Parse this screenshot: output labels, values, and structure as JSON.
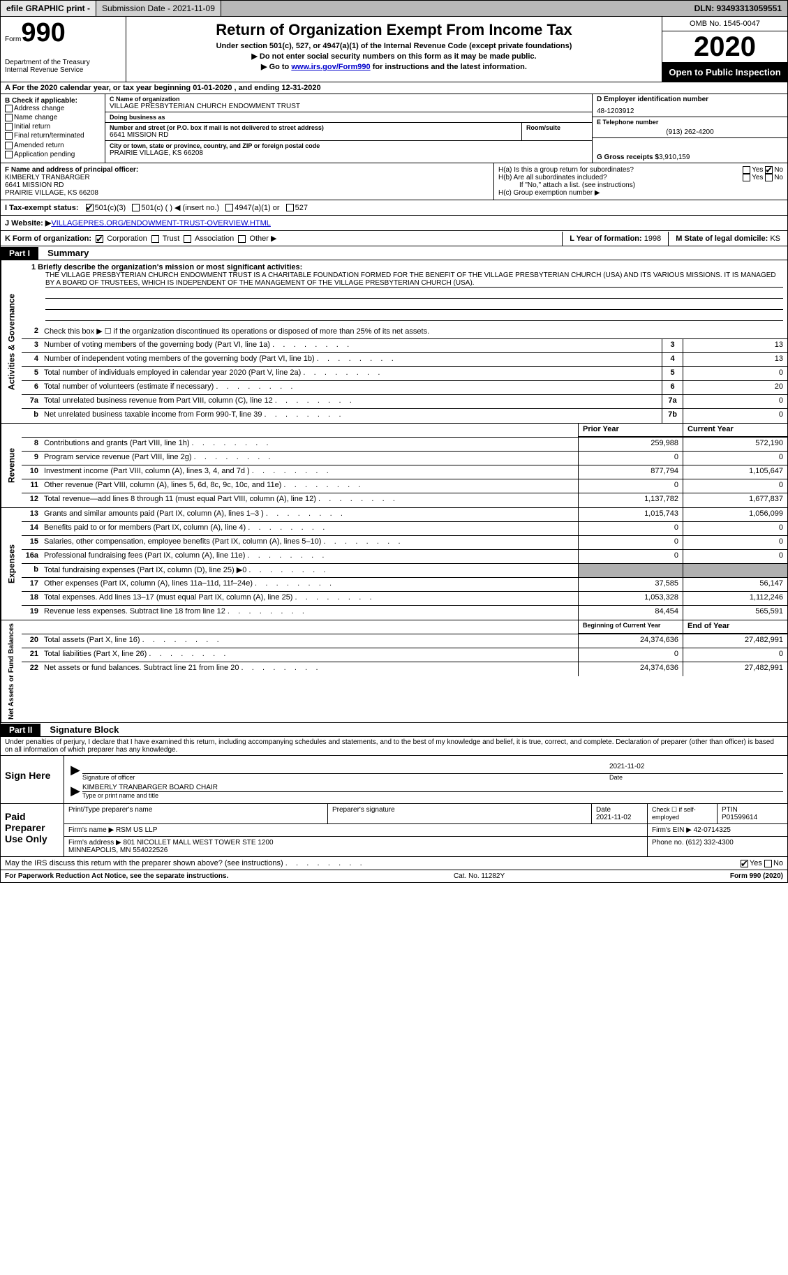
{
  "topbar": {
    "efile": "efile GRAPHIC print -",
    "submission": "Submission Date - 2021-11-09",
    "dln": "DLN: 93493313059551"
  },
  "header": {
    "form_label": "Form",
    "form_num": "990",
    "dept": "Department of the Treasury\nInternal Revenue Service",
    "title": "Return of Organization Exempt From Income Tax",
    "sub1": "Under section 501(c), 527, or 4947(a)(1) of the Internal Revenue Code (except private foundations)",
    "sub2": "▶ Do not enter social security numbers on this form as it may be made public.",
    "sub3_pre": "▶ Go to ",
    "sub3_link": "www.irs.gov/Form990",
    "sub3_post": " for instructions and the latest information.",
    "omb": "OMB No. 1545-0047",
    "year": "2020",
    "inspect": "Open to Public Inspection"
  },
  "rowA": "A For the 2020 calendar year, or tax year beginning 01-01-2020    , and ending 12-31-2020",
  "colB": {
    "title": "B Check if applicable:",
    "items": [
      "Address change",
      "Name change",
      "Initial return",
      "Final return/terminated",
      "Amended return",
      "Application pending"
    ]
  },
  "orgC": {
    "name_lbl": "C Name of organization",
    "name": "VILLAGE PRESBYTERIAN CHURCH ENDOWMENT TRUST",
    "dba_lbl": "Doing business as",
    "dba": "",
    "addr_lbl": "Number and street (or P.O. box if mail is not delivered to street address)",
    "addr": "6641 MISSION RD",
    "room_lbl": "Room/suite",
    "city_lbl": "City or town, state or province, country, and ZIP or foreign postal code",
    "city": "PRAIRIE VILLAGE, KS  66208"
  },
  "colD": {
    "ein_lbl": "D Employer identification number",
    "ein": "48-1203912",
    "tel_lbl": "E Telephone number",
    "tel": "(913) 262-4200",
    "gross_lbl": "G Gross receipts $ ",
    "gross": "3,910,159"
  },
  "rowF": {
    "lbl": "F Name and address of principal officer:",
    "name": "KIMBERLY TRANBARGER",
    "addr1": "6641 MISSION RD",
    "addr2": "PRAIRIE VILLAGE, KS  66208"
  },
  "rowH": {
    "ha": "H(a)  Is this a group return for subordinates?",
    "hb": "H(b)  Are all subordinates included?",
    "hb_note": "If \"No,\" attach a list. (see instructions)",
    "hc": "H(c)  Group exemption number ▶"
  },
  "rowI": {
    "lbl": "I    Tax-exempt status:",
    "o1": "501(c)(3)",
    "o2": "501(c) (  ) ◀ (insert no.)",
    "o3": "4947(a)(1) or",
    "o4": "527"
  },
  "rowJ": {
    "lbl": "J    Website: ▶ ",
    "val": "VILLAGEPRES.ORG/ENDOWMENT-TRUST-OVERVIEW.HTML"
  },
  "rowK": {
    "lbl": "K Form of organization:",
    "o1": "Corporation",
    "o2": "Trust",
    "o3": "Association",
    "o4": "Other ▶",
    "l_lbl": "L Year of formation: ",
    "l_val": "1998",
    "m_lbl": "M State of legal domicile: ",
    "m_val": "KS"
  },
  "part1": {
    "hdr": "Part I",
    "title": "Summary"
  },
  "mission": {
    "q": "1   Briefly describe the organization's mission or most significant activities:",
    "text": "THE VILLAGE PRESBYTERIAN CHURCH ENDOWMENT TRUST IS A CHARITABLE FOUNDATION FORMED FOR THE BENEFIT OF THE VILLAGE PRESBYTERIAN CHURCH (USA) AND ITS VARIOUS MISSIONS. IT IS MANAGED BY A BOARD OF TRUSTEES, WHICH IS INDEPENDENT OF THE MANAGEMENT OF THE VILLAGE PRESBYTERIAN CHURCH (USA)."
  },
  "gov_lines": [
    {
      "n": "2",
      "d": "Check this box ▶ ☐  if the organization discontinued its operations or disposed of more than 25% of its net assets."
    },
    {
      "n": "3",
      "d": "Number of voting members of the governing body (Part VI, line 1a)",
      "b": "3",
      "v": "13"
    },
    {
      "n": "4",
      "d": "Number of independent voting members of the governing body (Part VI, line 1b)",
      "b": "4",
      "v": "13"
    },
    {
      "n": "5",
      "d": "Total number of individuals employed in calendar year 2020 (Part V, line 2a)",
      "b": "5",
      "v": "0"
    },
    {
      "n": "6",
      "d": "Total number of volunteers (estimate if necessary)",
      "b": "6",
      "v": "20"
    },
    {
      "n": "7a",
      "d": "Total unrelated business revenue from Part VIII, column (C), line 12",
      "b": "7a",
      "v": "0"
    },
    {
      "n": "b",
      "d": "Net unrelated business taxable income from Form 990-T, line 39",
      "b": "7b",
      "v": "0"
    }
  ],
  "rev_hdr": {
    "py": "Prior Year",
    "cy": "Current Year"
  },
  "rev_lines": [
    {
      "n": "8",
      "d": "Contributions and grants (Part VIII, line 1h)",
      "py": "259,988",
      "cy": "572,190"
    },
    {
      "n": "9",
      "d": "Program service revenue (Part VIII, line 2g)",
      "py": "0",
      "cy": "0"
    },
    {
      "n": "10",
      "d": "Investment income (Part VIII, column (A), lines 3, 4, and 7d )",
      "py": "877,794",
      "cy": "1,105,647"
    },
    {
      "n": "11",
      "d": "Other revenue (Part VIII, column (A), lines 5, 6d, 8c, 9c, 10c, and 11e)",
      "py": "0",
      "cy": "0"
    },
    {
      "n": "12",
      "d": "Total revenue—add lines 8 through 11 (must equal Part VIII, column (A), line 12)",
      "py": "1,137,782",
      "cy": "1,677,837"
    }
  ],
  "exp_lines": [
    {
      "n": "13",
      "d": "Grants and similar amounts paid (Part IX, column (A), lines 1–3 )",
      "py": "1,015,743",
      "cy": "1,056,099"
    },
    {
      "n": "14",
      "d": "Benefits paid to or for members (Part IX, column (A), line 4)",
      "py": "0",
      "cy": "0"
    },
    {
      "n": "15",
      "d": "Salaries, other compensation, employee benefits (Part IX, column (A), lines 5–10)",
      "py": "0",
      "cy": "0"
    },
    {
      "n": "16a",
      "d": "Professional fundraising fees (Part IX, column (A), line 11e)",
      "py": "0",
      "cy": "0"
    },
    {
      "n": "b",
      "d": "Total fundraising expenses (Part IX, column (D), line 25) ▶0",
      "py": "",
      "cy": "",
      "grey": true
    },
    {
      "n": "17",
      "d": "Other expenses (Part IX, column (A), lines 11a–11d, 11f–24e)",
      "py": "37,585",
      "cy": "56,147"
    },
    {
      "n": "18",
      "d": "Total expenses. Add lines 13–17 (must equal Part IX, column (A), line 25)",
      "py": "1,053,328",
      "cy": "1,112,246"
    },
    {
      "n": "19",
      "d": "Revenue less expenses. Subtract line 18 from line 12",
      "py": "84,454",
      "cy": "565,591"
    }
  ],
  "na_hdr": {
    "py": "Beginning of Current Year",
    "cy": "End of Year"
  },
  "na_lines": [
    {
      "n": "20",
      "d": "Total assets (Part X, line 16)",
      "py": "24,374,636",
      "cy": "27,482,991"
    },
    {
      "n": "21",
      "d": "Total liabilities (Part X, line 26)",
      "py": "0",
      "cy": "0"
    },
    {
      "n": "22",
      "d": "Net assets or fund balances. Subtract line 21 from line 20",
      "py": "24,374,636",
      "cy": "27,482,991"
    }
  ],
  "part2": {
    "hdr": "Part II",
    "title": "Signature Block",
    "decl": "Under penalties of perjury, I declare that I have examined this return, including accompanying schedules and statements, and to the best of my knowledge and belief, it is true, correct, and complete. Declaration of preparer (other than officer) is based on all information of which preparer has any knowledge."
  },
  "sign": {
    "label": "Sign Here",
    "sig_lbl": "Signature of officer",
    "date": "2021-11-02",
    "date_lbl": "Date",
    "name": "KIMBERLY TRANBARGER  BOARD CHAIR",
    "name_lbl": "Type or print name and title"
  },
  "prep": {
    "label": "Paid Preparer Use Only",
    "c1": "Print/Type preparer's name",
    "c2": "Preparer's signature",
    "c3_lbl": "Date",
    "c3": "2021-11-02",
    "c4": "Check ☐ if self-employed",
    "c5_lbl": "PTIN",
    "c5": "P01599614",
    "firm_lbl": "Firm's name    ▶ ",
    "firm": "RSM US LLP",
    "ein_lbl": "Firm's EIN ▶ ",
    "ein": "42-0714325",
    "addr_lbl": "Firm's address ▶ ",
    "addr": "801 NICOLLET MALL WEST TOWER STE 1200\nMINNEAPOLIS, MN  554022526",
    "phone_lbl": "Phone no. ",
    "phone": "(612) 332-4300"
  },
  "discuss": "May the IRS discuss this return with the preparer shown above? (see instructions)",
  "footer": {
    "left": "For Paperwork Reduction Act Notice, see the separate instructions.",
    "mid": "Cat. No. 11282Y",
    "right": "Form 990 (2020)"
  },
  "vlabels": {
    "gov": "Activities & Governance",
    "rev": "Revenue",
    "exp": "Expenses",
    "na": "Net Assets or Fund Balances"
  }
}
